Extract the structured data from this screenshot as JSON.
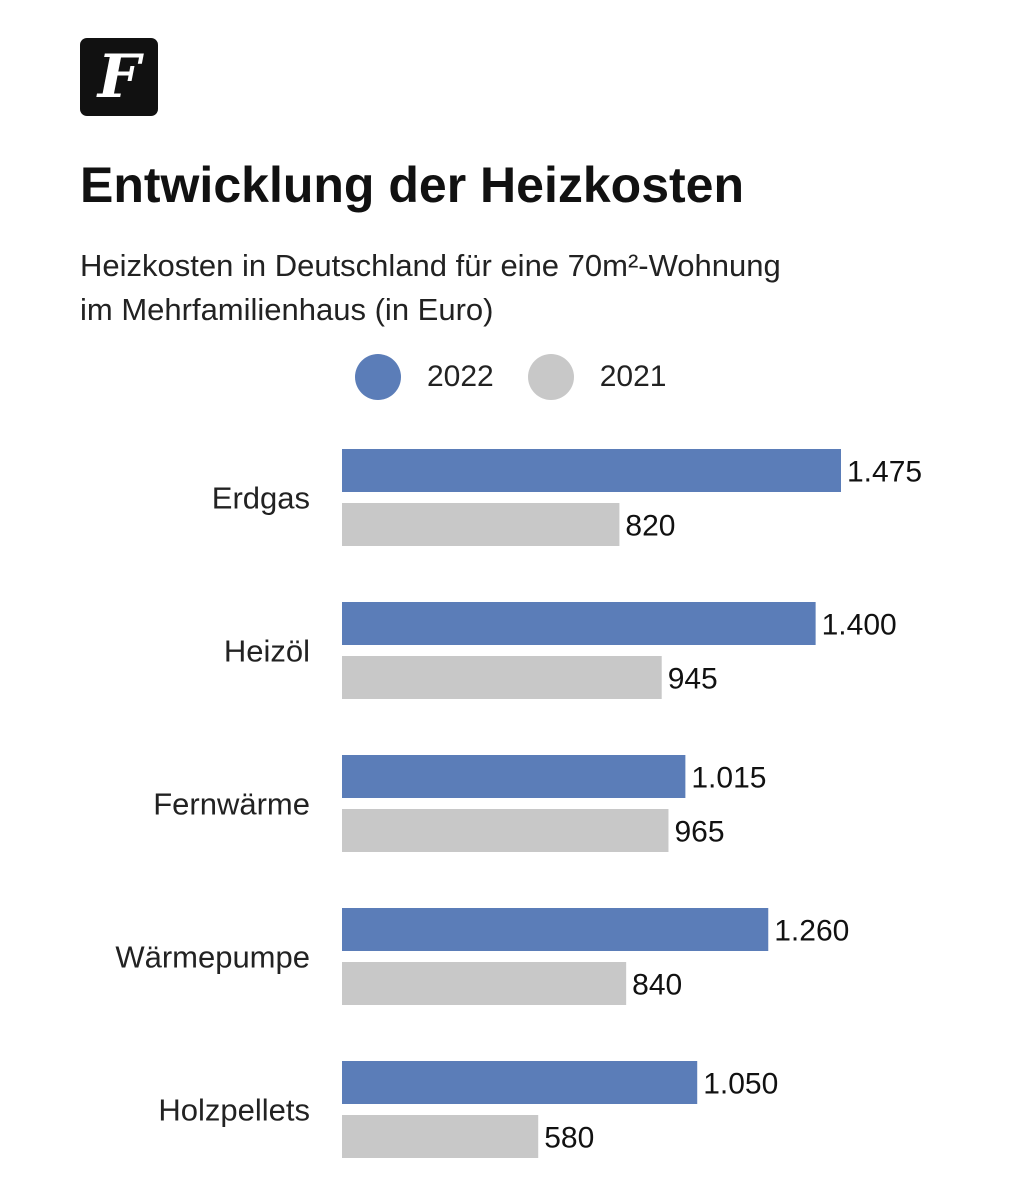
{
  "logo": {
    "letter": "F"
  },
  "chart_data": {
    "type": "bar",
    "orientation": "horizontal",
    "title": "Entwicklung der Heizkosten",
    "subtitle_lines": [
      "Heizkosten in Deutschland für eine 70m²-Wohnung",
      "im Mehrfamilienhaus (in Euro)"
    ],
    "categories": [
      "Erdgas",
      "Heizöl",
      "Fernwärme",
      "Wärmepumpe",
      "Holzpellets"
    ],
    "series": [
      {
        "name": "2022",
        "color": "#5b7db8",
        "values": [
          1475,
          1400,
          1015,
          1260,
          1050
        ],
        "labels": [
          "1.475",
          "1.400",
          "1.015",
          "1.260",
          "1.050"
        ]
      },
      {
        "name": "2021",
        "color": "#c8c8c8",
        "values": [
          820,
          945,
          965,
          840,
          580
        ],
        "labels": [
          "820",
          "945",
          "965",
          "840",
          "580"
        ]
      }
    ],
    "xlim": [
      0,
      1475
    ],
    "grid": false,
    "legend_position": "top"
  }
}
